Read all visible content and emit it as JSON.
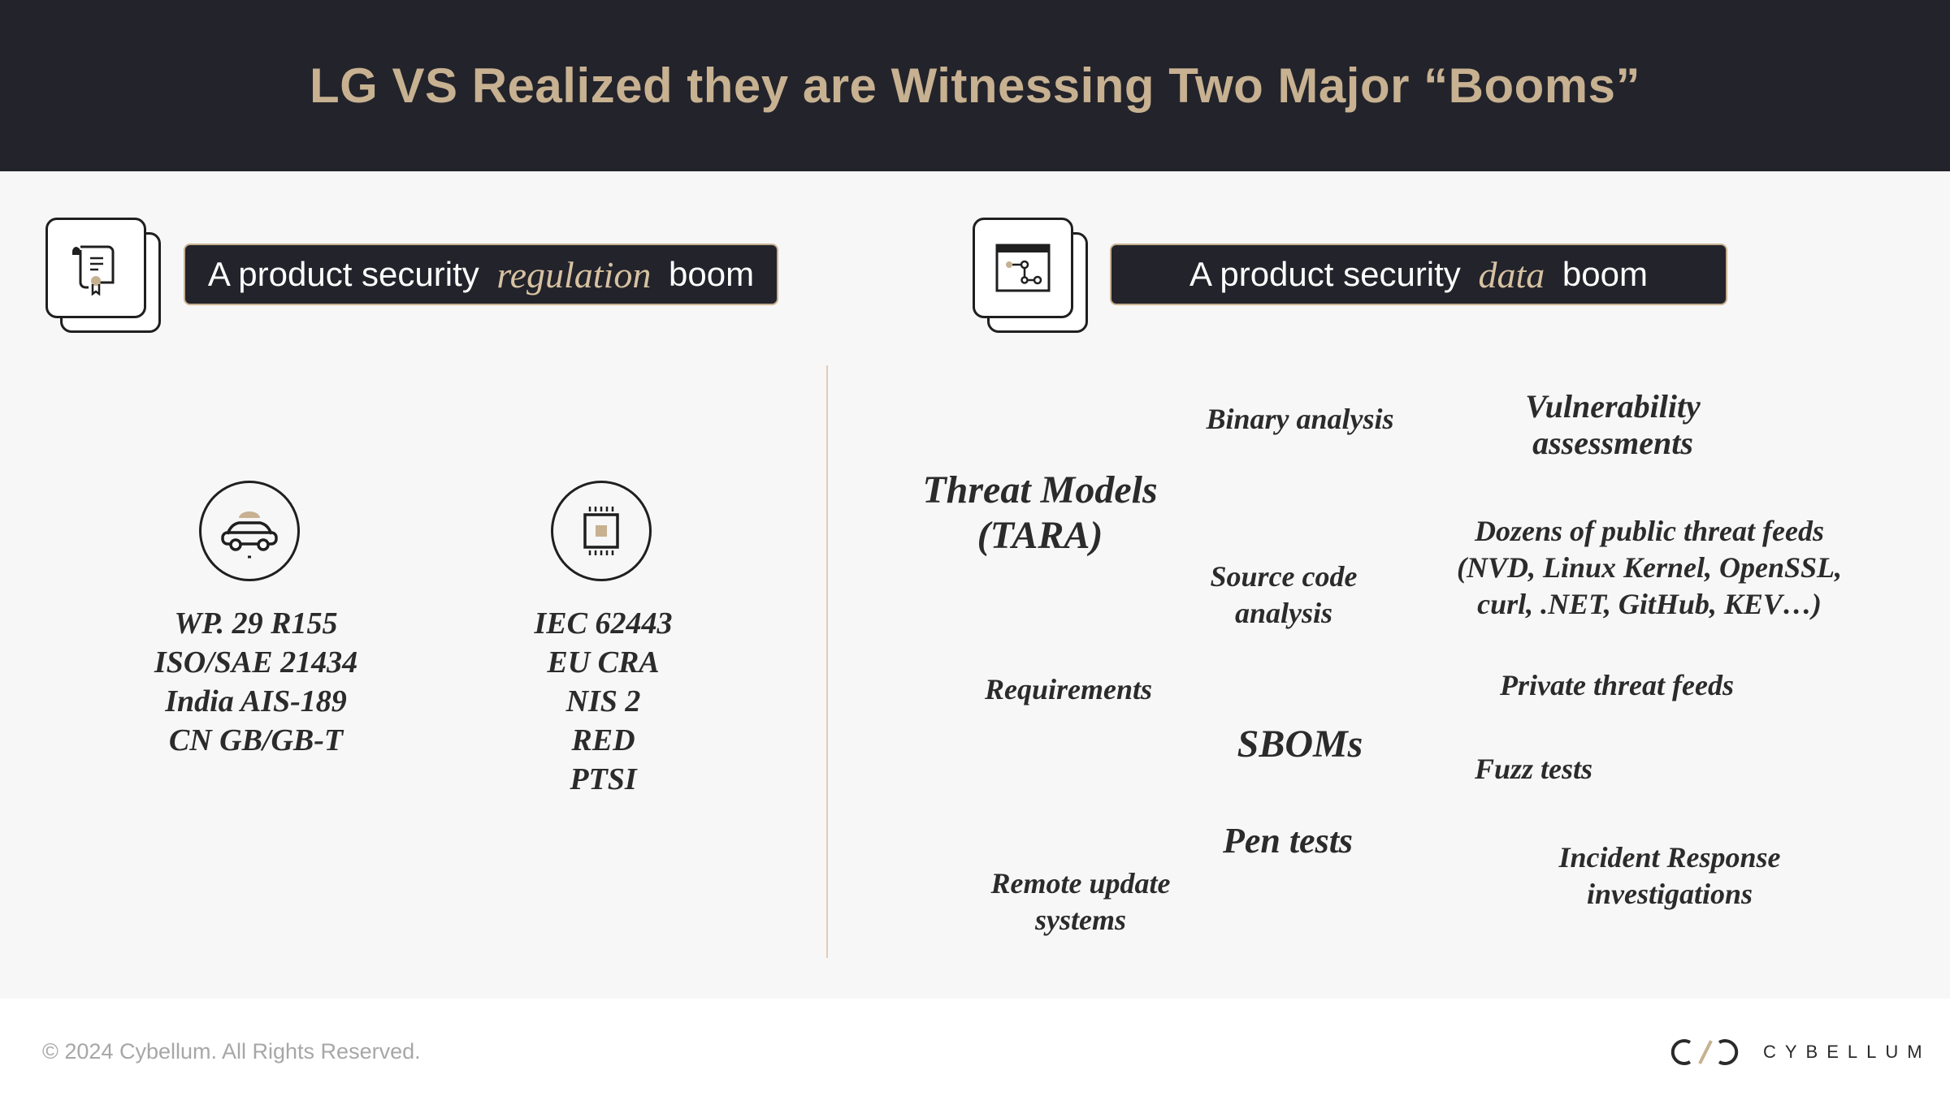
{
  "header": {
    "title": "LG VS Realized they are Witnessing Two Major “Booms”"
  },
  "left": {
    "pill": {
      "before": "A product security ",
      "emph": "regulation",
      "after": " boom"
    },
    "icon": "certificate-scroll-icon",
    "groups": [
      {
        "icon": "vehicle-icon",
        "items": [
          "WP. 29 R155",
          "ISO/SAE 21434",
          "India AIS-189",
          "CN GB/GB-T"
        ]
      },
      {
        "icon": "chip-icon",
        "items": [
          "IEC 62443",
          "EU CRA",
          "NIS 2",
          "RED",
          "PTSI"
        ]
      }
    ]
  },
  "right": {
    "pill": {
      "before": "A product security ",
      "emph": "data",
      "after": " boom"
    },
    "icon": "workflow-window-icon",
    "terms": {
      "binary": "Binary analysis",
      "vuln": [
        "Vulnerability",
        "assessments"
      ],
      "threat_models": [
        "Threat Models",
        "(TARA)"
      ],
      "feeds": [
        "Dozens of public threat feeds",
        "(NVD, Linux Kernel, OpenSSL,",
        "curl, .NET, GitHub, KEV…)"
      ],
      "source_code": [
        "Source code",
        "analysis"
      ],
      "requirements": "Requirements",
      "private_feeds": "Private threat feeds",
      "sboms": "SBOMs",
      "fuzz": "Fuzz tests",
      "pen": "Pen tests",
      "incident": [
        "Incident Response",
        "investigations"
      ],
      "remote": [
        "Remote update",
        "systems"
      ]
    }
  },
  "footer": {
    "copyright": "© 2024 Cybellum. All Rights Reserved.",
    "brand": "CYBELLUM"
  },
  "colors": {
    "header_bg": "#23232b",
    "accent": "#c7b191",
    "body_bg": "#f7f7f7",
    "divider": "#e3cbb7"
  }
}
